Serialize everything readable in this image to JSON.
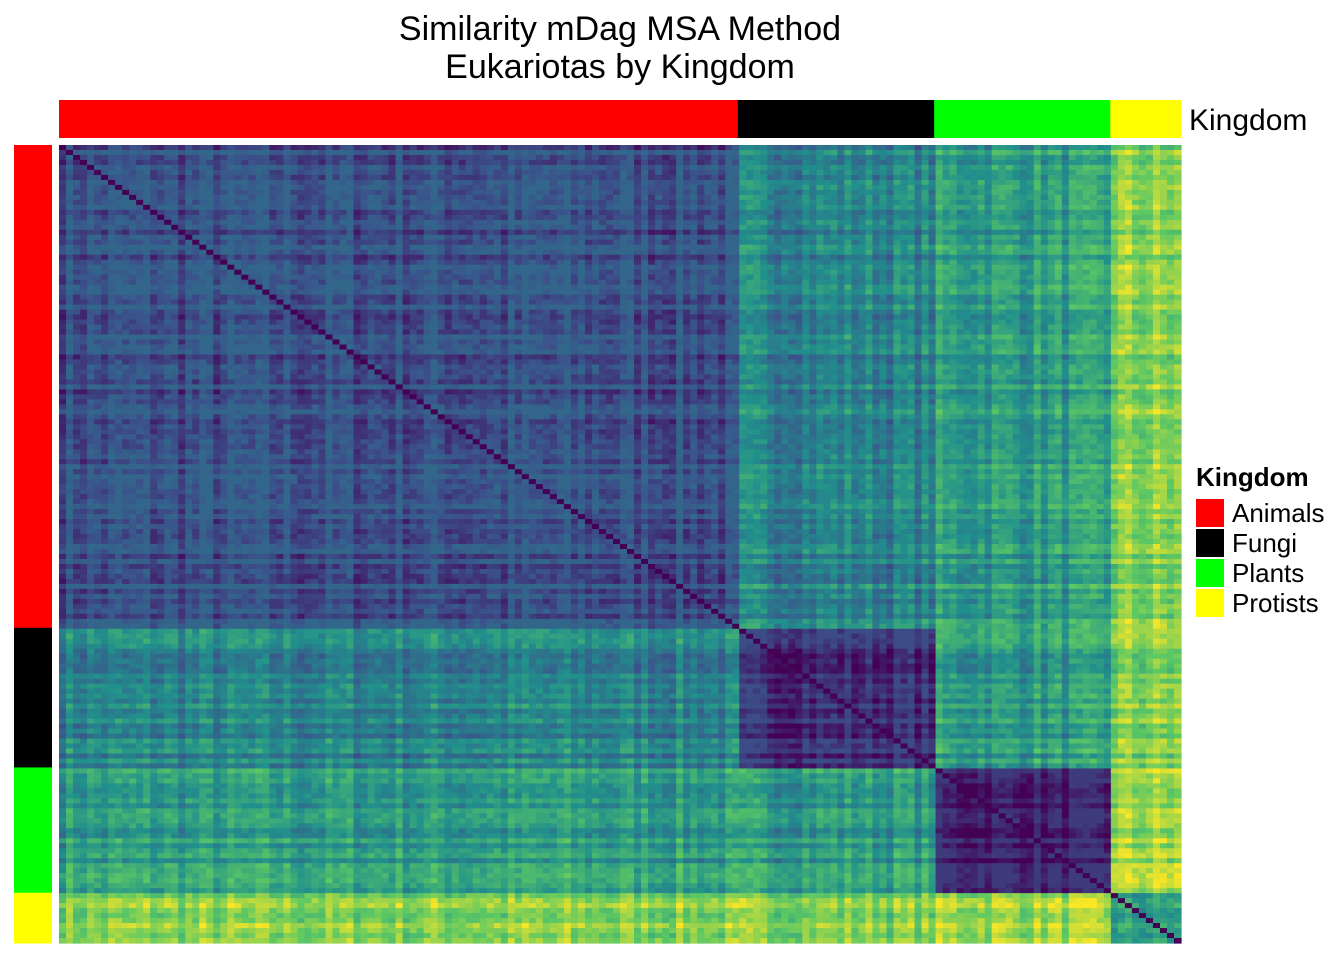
{
  "title": {
    "line1": "Similarity mDag MSA Method",
    "line2": "Eukariotas by Kingdom"
  },
  "annotation_label": "Kingdom",
  "legend": {
    "title": "Kingdom",
    "items": [
      {
        "label": "Animals",
        "color": "#FF0000"
      },
      {
        "label": "Fungi",
        "color": "#000000"
      },
      {
        "label": "Plants",
        "color": "#00FF00"
      },
      {
        "label": "Protists",
        "color": "#FFFF00"
      }
    ]
  },
  "chart_data": {
    "type": "heatmap",
    "title": "Similarity mDag MSA Method\nEukariotas by Kingdom",
    "colormap": "viridis (dark purple = most similar, yellow = least similar)",
    "colormap_colors": [
      "#440154",
      "#3B528B",
      "#21908C",
      "#5DC863",
      "#FDE725"
    ],
    "rows_order": [
      "Animals",
      "Fungi",
      "Plants",
      "Protists"
    ],
    "cols_order": [
      "Animals",
      "Fungi",
      "Plants",
      "Protists"
    ],
    "group_fractions": [
      0.605,
      0.175,
      0.157,
      0.063
    ],
    "group_colors": [
      "#FF0000",
      "#000000",
      "#00FF00",
      "#FFFF00"
    ],
    "block_mean_distance_0_to_1": [
      [
        0.25,
        0.45,
        0.55,
        0.8
      ],
      [
        0.45,
        0.15,
        0.55,
        0.8
      ],
      [
        0.55,
        0.55,
        0.1,
        0.85
      ],
      [
        0.8,
        0.8,
        0.85,
        0.55
      ]
    ],
    "legend_placement": "right",
    "annotation_bars": [
      "top",
      "left"
    ]
  }
}
